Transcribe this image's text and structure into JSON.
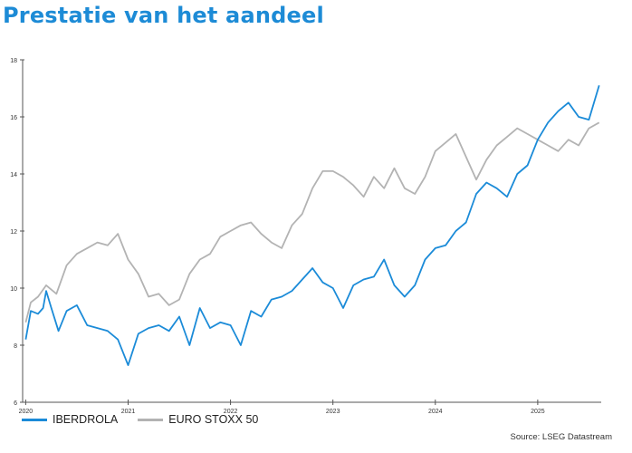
{
  "page": {
    "title": "Prestatie van het aandeel",
    "source": "Source: LSEG Datastream"
  },
  "chart_data": {
    "type": "line",
    "title": "Prestatie van het aandeel",
    "xlabel": "",
    "ylabel": "",
    "xlim": [
      2019.97,
      2025.62
    ],
    "ylim": [
      6,
      18
    ],
    "y_ticks": [
      6,
      8,
      10,
      12,
      14,
      16,
      18
    ],
    "x_ticks": [
      "2020",
      "2021",
      "2022",
      "2023",
      "2024",
      "2025"
    ],
    "x_tick_positions": [
      2020,
      2021,
      2022,
      2023,
      2024,
      2025
    ],
    "grid": false,
    "legend_position": "bottom-left",
    "series": [
      {
        "name": "IBERDROLA",
        "color": "#1b8bd8",
        "x": [
          2020.0,
          2020.05,
          2020.12,
          2020.17,
          2020.2,
          2020.25,
          2020.32,
          2020.4,
          2020.5,
          2020.6,
          2020.7,
          2020.8,
          2020.9,
          2021.0,
          2021.1,
          2021.2,
          2021.3,
          2021.4,
          2021.5,
          2021.6,
          2021.7,
          2021.8,
          2021.9,
          2022.0,
          2022.1,
          2022.2,
          2022.3,
          2022.4,
          2022.5,
          2022.6,
          2022.7,
          2022.8,
          2022.9,
          2023.0,
          2023.1,
          2023.2,
          2023.3,
          2023.4,
          2023.5,
          2023.6,
          2023.7,
          2023.8,
          2023.9,
          2024.0,
          2024.1,
          2024.2,
          2024.3,
          2024.4,
          2024.5,
          2024.6,
          2024.7,
          2024.8,
          2024.9,
          2025.0,
          2025.1,
          2025.2,
          2025.3,
          2025.4,
          2025.5,
          2025.6
        ],
        "values": [
          8.2,
          9.2,
          9.1,
          9.3,
          9.9,
          9.3,
          8.5,
          9.2,
          9.4,
          8.7,
          8.6,
          8.5,
          8.2,
          7.3,
          8.4,
          8.6,
          8.7,
          8.5,
          9.0,
          8.0,
          9.3,
          8.6,
          8.8,
          8.7,
          8.0,
          9.2,
          9.0,
          9.6,
          9.7,
          9.9,
          10.3,
          10.7,
          10.2,
          10.0,
          9.3,
          10.1,
          10.3,
          10.4,
          11.0,
          10.1,
          9.7,
          10.1,
          11.0,
          11.4,
          11.5,
          12.0,
          12.3,
          13.3,
          13.7,
          13.5,
          13.2,
          14.0,
          14.3,
          15.2,
          15.8,
          16.2,
          16.5,
          16.0,
          15.9,
          17.1
        ]
      },
      {
        "name": "EURO STOXX 50",
        "color": "#b3b3b3",
        "x": [
          2020.0,
          2020.05,
          2020.12,
          2020.2,
          2020.3,
          2020.4,
          2020.5,
          2020.6,
          2020.7,
          2020.8,
          2020.9,
          2021.0,
          2021.1,
          2021.2,
          2021.3,
          2021.4,
          2021.5,
          2021.6,
          2021.7,
          2021.8,
          2021.9,
          2022.0,
          2022.1,
          2022.2,
          2022.3,
          2022.4,
          2022.5,
          2022.6,
          2022.7,
          2022.8,
          2022.9,
          2023.0,
          2023.1,
          2023.2,
          2023.3,
          2023.4,
          2023.5,
          2023.6,
          2023.7,
          2023.8,
          2023.9,
          2024.0,
          2024.1,
          2024.2,
          2024.3,
          2024.4,
          2024.5,
          2024.6,
          2024.7,
          2024.8,
          2024.9,
          2025.0,
          2025.1,
          2025.2,
          2025.3,
          2025.4,
          2025.5,
          2025.6
        ],
        "values": [
          8.8,
          9.5,
          9.7,
          10.1,
          9.8,
          10.8,
          11.2,
          11.4,
          11.6,
          11.5,
          11.9,
          11.0,
          10.5,
          9.7,
          9.8,
          9.4,
          9.6,
          10.5,
          11.0,
          11.2,
          11.8,
          12.0,
          12.2,
          12.3,
          11.9,
          11.6,
          11.4,
          12.2,
          12.6,
          13.5,
          14.1,
          14.1,
          13.9,
          13.6,
          13.2,
          13.9,
          13.5,
          14.2,
          13.5,
          13.3,
          13.9,
          14.8,
          15.1,
          15.4,
          14.6,
          13.8,
          14.5,
          15.0,
          15.3,
          15.6,
          15.4,
          15.2,
          15.0,
          14.8,
          15.2,
          15.0,
          15.6,
          15.8
        ]
      }
    ]
  }
}
